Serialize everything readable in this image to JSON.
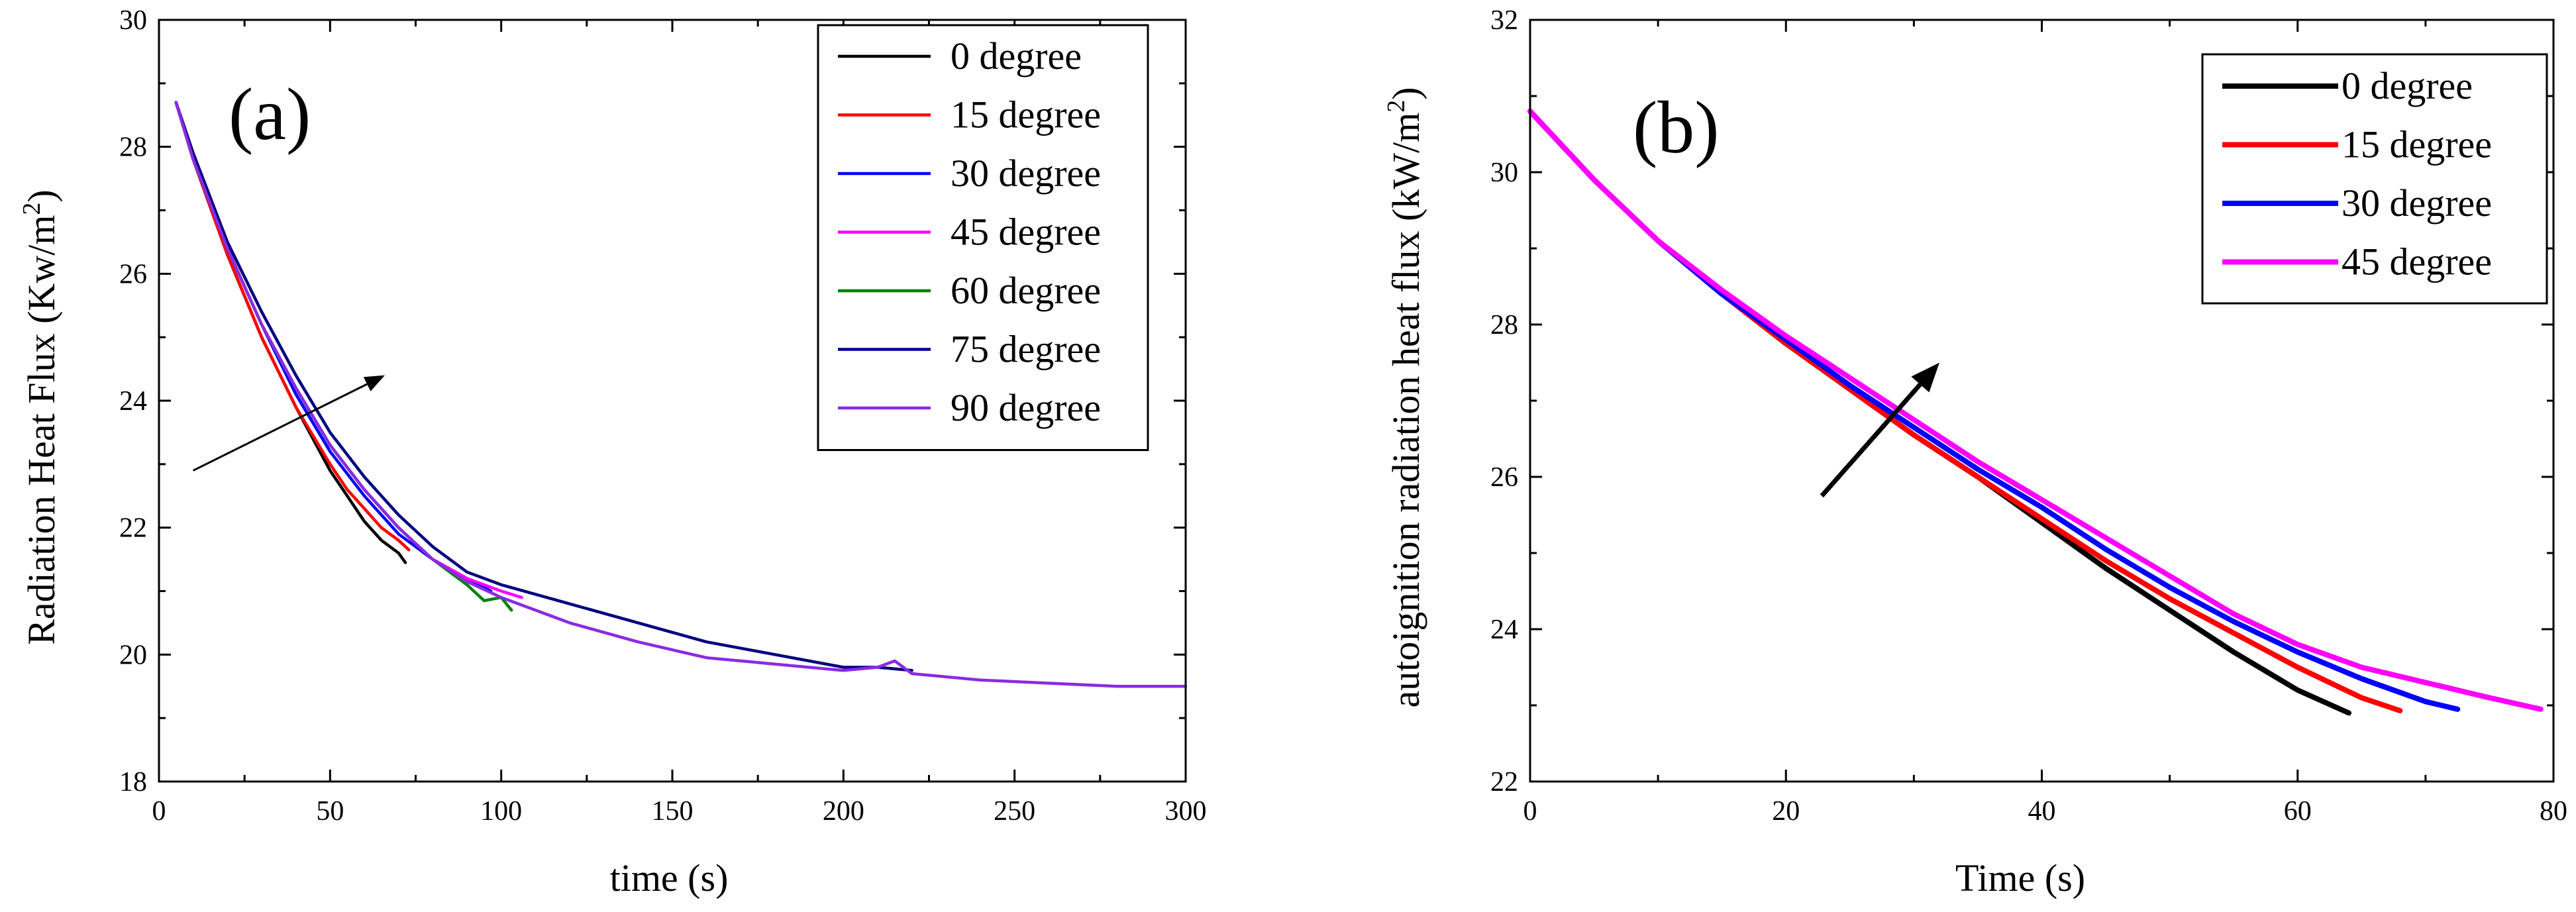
{
  "chart_data": [
    {
      "type": "line",
      "panel_label": "(a)",
      "xlabel": "time (s)",
      "ylabel_main": "Radiation Heat Flux (Kw/m",
      "ylabel_sup": "2",
      "ylabel_close": ")",
      "xlim": [
        0,
        300
      ],
      "ylim": [
        18,
        30
      ],
      "xticks": [
        0,
        50,
        100,
        150,
        200,
        250,
        300
      ],
      "yticks": [
        18,
        20,
        22,
        24,
        26,
        28,
        30
      ],
      "legend_position": "top-right",
      "trend_arrow": {
        "from": [
          10,
          22.9
        ],
        "to": [
          66,
          24.4
        ]
      },
      "series": [
        {
          "name": "0  degree",
          "color": "#000000",
          "x": [
            5,
            10,
            20,
            30,
            40,
            50,
            55,
            60,
            65,
            70,
            72
          ],
          "y": [
            28.7,
            27.8,
            26.3,
            25.0,
            23.9,
            22.9,
            22.5,
            22.1,
            21.8,
            21.6,
            21.45
          ]
        },
        {
          "name": "15 degree",
          "color": "#ff0000",
          "x": [
            5,
            10,
            20,
            30,
            40,
            50,
            55,
            60,
            65,
            70,
            73
          ],
          "y": [
            28.7,
            27.8,
            26.3,
            25.0,
            23.9,
            23.0,
            22.6,
            22.3,
            22.0,
            21.8,
            21.65
          ]
        },
        {
          "name": "30 degree",
          "color": "#0000ff",
          "x": [
            5,
            10,
            20,
            30,
            40,
            50,
            60,
            70,
            80,
            90,
            97
          ],
          "y": [
            28.7,
            27.8,
            26.4,
            25.2,
            24.1,
            23.2,
            22.5,
            21.9,
            21.5,
            21.2,
            21.0
          ]
        },
        {
          "name": "45 degree",
          "color": "#ff00ff",
          "x": [
            5,
            10,
            20,
            30,
            40,
            50,
            60,
            70,
            80,
            90,
            100,
            106
          ],
          "y": [
            28.7,
            27.8,
            26.4,
            25.2,
            24.2,
            23.3,
            22.6,
            22.0,
            21.5,
            21.2,
            21.0,
            20.9
          ]
        },
        {
          "name": "60 degree",
          "color": "#008000",
          "x": [
            5,
            10,
            20,
            30,
            40,
            50,
            60,
            70,
            80,
            90,
            95,
            100,
            103
          ],
          "y": [
            28.7,
            27.8,
            26.4,
            25.2,
            24.2,
            23.3,
            22.6,
            22.0,
            21.5,
            21.1,
            20.85,
            20.9,
            20.7
          ]
        },
        {
          "name": "75 degree",
          "color": "#000080",
          "x": [
            5,
            10,
            20,
            30,
            40,
            50,
            60,
            70,
            80,
            90,
            100,
            120,
            140,
            160,
            180,
            200,
            210,
            220
          ],
          "y": [
            28.7,
            27.9,
            26.5,
            25.4,
            24.4,
            23.5,
            22.8,
            22.2,
            21.7,
            21.3,
            21.1,
            20.8,
            20.5,
            20.2,
            20.0,
            19.8,
            19.8,
            19.75
          ]
        },
        {
          "name": "90 degree",
          "color": "#8a2be2",
          "x": [
            5,
            10,
            20,
            30,
            40,
            50,
            60,
            70,
            80,
            90,
            100,
            120,
            140,
            160,
            180,
            200,
            210,
            215,
            220,
            240,
            260,
            280,
            300
          ],
          "y": [
            28.7,
            27.8,
            26.4,
            25.2,
            24.2,
            23.3,
            22.6,
            22.0,
            21.5,
            21.15,
            20.9,
            20.5,
            20.2,
            19.95,
            19.85,
            19.75,
            19.8,
            19.9,
            19.7,
            19.6,
            19.55,
            19.5,
            19.5
          ]
        }
      ]
    },
    {
      "type": "line",
      "panel_label": "(b)",
      "xlabel": "Time (s)",
      "ylabel_main": "autoignition radiation heat flux (kW/m",
      "ylabel_sup": "2",
      "ylabel_close": ")",
      "xlim": [
        0,
        80
      ],
      "ylim": [
        22,
        32
      ],
      "xticks": [
        0,
        20,
        40,
        60,
        80
      ],
      "yticks": [
        22,
        24,
        26,
        28,
        30,
        32
      ],
      "legend_position": "top-right",
      "trend_arrow": {
        "from": [
          22.8,
          25.75
        ],
        "to": [
          32,
          27.5
        ]
      },
      "series": [
        {
          "name": "0   degree",
          "color": "#000000",
          "x": [
            0,
            5,
            10,
            15,
            20,
            25,
            30,
            35,
            40,
            45,
            50,
            55,
            60,
            64
          ],
          "y": [
            30.8,
            29.9,
            29.1,
            28.4,
            27.75,
            27.15,
            26.55,
            26.0,
            25.4,
            24.8,
            24.25,
            23.7,
            23.2,
            22.9
          ]
        },
        {
          "name": "15 degree",
          "color": "#ff0000",
          "x": [
            0,
            5,
            10,
            15,
            20,
            25,
            30,
            35,
            40,
            45,
            50,
            55,
            60,
            65,
            68
          ],
          "y": [
            30.8,
            29.9,
            29.1,
            28.4,
            27.75,
            27.15,
            26.55,
            26.0,
            25.45,
            24.9,
            24.4,
            23.95,
            23.5,
            23.1,
            22.93
          ]
        },
        {
          "name": "30 degree",
          "color": "#0000ff",
          "x": [
            0,
            5,
            10,
            15,
            20,
            25,
            30,
            35,
            40,
            45,
            50,
            55,
            60,
            65,
            70,
            72.5
          ],
          "y": [
            30.8,
            29.9,
            29.1,
            28.4,
            27.8,
            27.2,
            26.65,
            26.1,
            25.6,
            25.05,
            24.55,
            24.1,
            23.7,
            23.35,
            23.05,
            22.95
          ]
        },
        {
          "name": "45 degree",
          "color": "#ff00ff",
          "x": [
            0,
            5,
            10,
            15,
            20,
            25,
            30,
            35,
            40,
            45,
            50,
            55,
            60,
            65,
            70,
            75,
            79
          ],
          "y": [
            30.8,
            29.9,
            29.1,
            28.45,
            27.85,
            27.3,
            26.75,
            26.2,
            25.7,
            25.2,
            24.7,
            24.2,
            23.8,
            23.5,
            23.3,
            23.1,
            22.95
          ]
        }
      ]
    }
  ]
}
